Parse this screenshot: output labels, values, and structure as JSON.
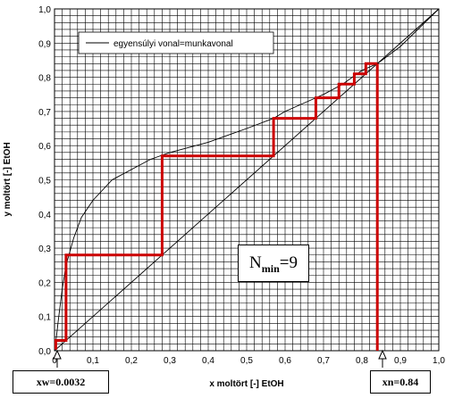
{
  "chart_data": {
    "type": "line",
    "title": "",
    "xlabel": "x moltört [-] EtOH",
    "ylabel": "y moltört [-] EtOH",
    "xlim": [
      0,
      1
    ],
    "ylim": [
      0,
      1
    ],
    "x_ticks": [
      "0",
      "0,1",
      "0,2",
      "0,3",
      "0,4",
      "0,5",
      "0,6",
      "0,7",
      "0,8",
      "0,9",
      "1,0"
    ],
    "y_ticks": [
      "0,0",
      "0,1",
      "0,2",
      "0,3",
      "0,4",
      "0,5",
      "0,6",
      "0,7",
      "0,8",
      "0,9",
      "1,0"
    ],
    "grid": true,
    "legend": {
      "placement": "top-left",
      "entries": [
        "egyensúlyi vonal=munkavonal"
      ]
    },
    "series": [
      {
        "name": "egyensúlyi vonal=munkavonal",
        "color": "#000000",
        "x": [
          0,
          0.005,
          0.01,
          0.02,
          0.03,
          0.05,
          0.07,
          0.1,
          0.15,
          0.2,
          0.25,
          0.3,
          0.4,
          0.5,
          0.57,
          0.6,
          0.68,
          0.7,
          0.75,
          0.8,
          0.84,
          0.9,
          1.0
        ],
        "y": [
          0,
          0.04,
          0.09,
          0.18,
          0.25,
          0.33,
          0.39,
          0.44,
          0.5,
          0.53,
          0.56,
          0.58,
          0.61,
          0.65,
          0.68,
          0.7,
          0.74,
          0.75,
          0.78,
          0.82,
          0.84,
          0.89,
          1.0
        ]
      },
      {
        "name": "",
        "color": "#000000",
        "x": [
          0,
          1
        ],
        "y": [
          0,
          1
        ]
      },
      {
        "name": "",
        "color": "#cc0000",
        "x": [
          0.84,
          0.81,
          0.81,
          0.78,
          0.78,
          0.74,
          0.74,
          0.68,
          0.68,
          0.57,
          0.57,
          0.28,
          0.28,
          0.03,
          0.03,
          0.0032,
          0.0032
        ],
        "y": [
          0.84,
          0.84,
          0.81,
          0.81,
          0.78,
          0.78,
          0.74,
          0.74,
          0.68,
          0.68,
          0.57,
          0.57,
          0.28,
          0.28,
          0.03,
          0.03,
          0.0032
        ]
      },
      {
        "name": "",
        "color": "#cc0000",
        "x": [
          0.84,
          0.84
        ],
        "y": [
          0.84,
          0
        ]
      }
    ],
    "annotations": {
      "xw_label": "xw=0.0032",
      "xn_label": "xn=0.84",
      "nmin_main": "N",
      "nmin_sub": "min",
      "nmin_value": "=9"
    }
  }
}
